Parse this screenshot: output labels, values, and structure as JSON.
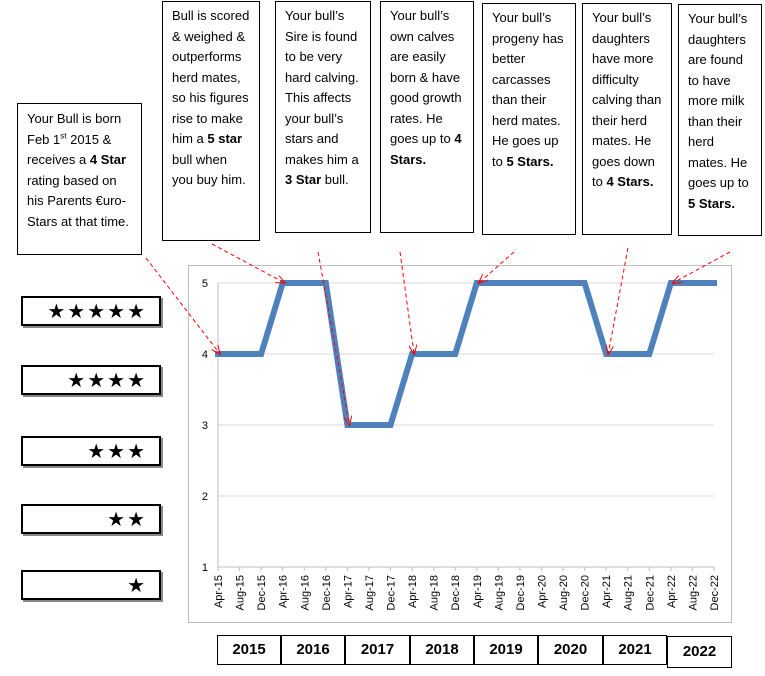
{
  "callouts": [
    {
      "id": "born",
      "parts": [
        {
          "t": "Your Bull is born Feb 1"
        },
        {
          "t": "st",
          "sup": true
        },
        {
          "t": " 2015 & receives a "
        },
        {
          "t": "4 Star",
          "b": true
        },
        {
          "t": " rating based on his Parents €uro-Stars at that time."
        }
      ]
    },
    {
      "id": "scored",
      "parts": [
        {
          "t": "Bull is scored & weighed & outperforms herd mates, so his figures rise to make him a "
        },
        {
          "t": "5 star",
          "b": true
        },
        {
          "t": " bull when you buy him."
        }
      ]
    },
    {
      "id": "sire",
      "parts": [
        {
          "t": "Your bull’s Sire is found to be very hard calving. This affects your bull’s stars and makes him a "
        },
        {
          "t": "3 Star",
          "b": true
        },
        {
          "t": " bull."
        }
      ]
    },
    {
      "id": "calves",
      "parts": [
        {
          "t": "Your bull’s own calves are easily born & have good growth rates. He goes up to "
        },
        {
          "t": "4 Stars.",
          "b": true
        }
      ]
    },
    {
      "id": "progeny",
      "parts": [
        {
          "t": "Your bull’s progeny has better carcasses than their herd mates. He goes up to "
        },
        {
          "t": "5 Stars.",
          "b": true
        }
      ]
    },
    {
      "id": "daughters-calving",
      "parts": [
        {
          "t": "Your bull’s daughters have more difficulty calving than their herd mates. He goes down to "
        },
        {
          "t": "4 Stars.",
          "b": true
        }
      ]
    },
    {
      "id": "daughters-milk",
      "parts": [
        {
          "t": "Your bull’s daughters are found to have more milk than their herd mates. He goes up to "
        },
        {
          "t": "5 Stars.",
          "b": true
        }
      ]
    }
  ],
  "star_ratings": [
    {
      "stars": "★★★★★"
    },
    {
      "stars": "★★★★"
    },
    {
      "stars": "★★★"
    },
    {
      "stars": "★★"
    },
    {
      "stars": "★"
    }
  ],
  "colors": {
    "line": "#4f81bd",
    "grid": "#d9d9d9",
    "axis": "#bfbfbf",
    "arrow": "#ff0000",
    "tick_text": "#000000"
  },
  "chart_data": {
    "type": "line",
    "title": "",
    "xlabel": "",
    "ylabel": "",
    "ylim": [
      1,
      5
    ],
    "y_ticks": [
      "1",
      "2",
      "3",
      "4",
      "5"
    ],
    "grid": true,
    "categories": [
      "Apr-15",
      "Aug-15",
      "Dec-15",
      "Apr-16",
      "Aug-16",
      "Dec-16",
      "Apr-17",
      "Aug-17",
      "Dec-17",
      "Apr-18",
      "Aug-18",
      "Dec-18",
      "Apr-19",
      "Aug-19",
      "Dec-19",
      "Apr-20",
      "Aug-20",
      "Dec-20",
      "Apr-21",
      "Aug-21",
      "Dec-21",
      "Apr-22",
      "Aug-22",
      "Dec-22"
    ],
    "series": [
      {
        "values": [
          4,
          4,
          4,
          5,
          5,
          5,
          3,
          3,
          3,
          4,
          4,
          4,
          5,
          5,
          5,
          5,
          5,
          5,
          4,
          4,
          4,
          5,
          5,
          5
        ]
      }
    ],
    "annotations": [
      {
        "callout": "born",
        "points_to": "Apr-15"
      },
      {
        "callout": "scored",
        "points_to": "Apr-16"
      },
      {
        "callout": "sire",
        "points_to": "Apr-17"
      },
      {
        "callout": "calves",
        "points_to": "Apr-18"
      },
      {
        "callout": "progeny",
        "points_to": "Apr-19"
      },
      {
        "callout": "daughters-calving",
        "points_to": "Apr-21"
      },
      {
        "callout": "daughters-milk",
        "points_to": "Apr-22"
      }
    ]
  },
  "years": [
    "2015",
    "2016",
    "2017",
    "2018",
    "2019",
    "2020",
    "2021",
    "2022"
  ]
}
